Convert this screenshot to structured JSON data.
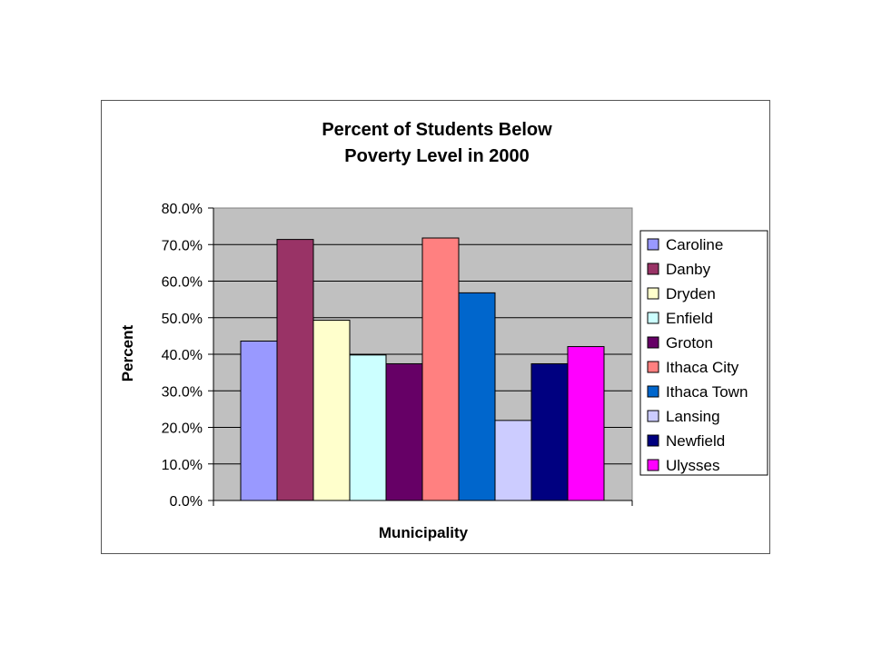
{
  "chart_data": {
    "type": "bar",
    "title": [
      "Percent of Students Below",
      "Poverty Level in 2000"
    ],
    "xlabel": "Municipality",
    "ylabel": "Percent",
    "ylim": [
      0,
      80
    ],
    "yticks": [
      "0.0%",
      "10.0%",
      "20.0%",
      "30.0%",
      "40.0%",
      "50.0%",
      "60.0%",
      "70.0%",
      "80.0%"
    ],
    "grid": true,
    "plot_background": "#c0c0c0",
    "legend_position": "right",
    "series": [
      {
        "name": "Caroline",
        "value": 43.6,
        "color": "#9999ff"
      },
      {
        "name": "Danby",
        "value": 71.4,
        "color": "#993366"
      },
      {
        "name": "Dryden",
        "value": 49.3,
        "color": "#ffffcc"
      },
      {
        "name": "Enfield",
        "value": 39.8,
        "color": "#ccffff"
      },
      {
        "name": "Groton",
        "value": 37.4,
        "color": "#660066"
      },
      {
        "name": "Ithaca City",
        "value": 71.8,
        "color": "#ff8080"
      },
      {
        "name": "Ithaca Town",
        "value": 56.8,
        "color": "#0066cc"
      },
      {
        "name": "Lansing",
        "value": 21.9,
        "color": "#ccccff"
      },
      {
        "name": "Newfield",
        "value": 37.4,
        "color": "#000080"
      },
      {
        "name": "Ulysses",
        "value": 42.1,
        "color": "#ff00ff"
      }
    ]
  }
}
